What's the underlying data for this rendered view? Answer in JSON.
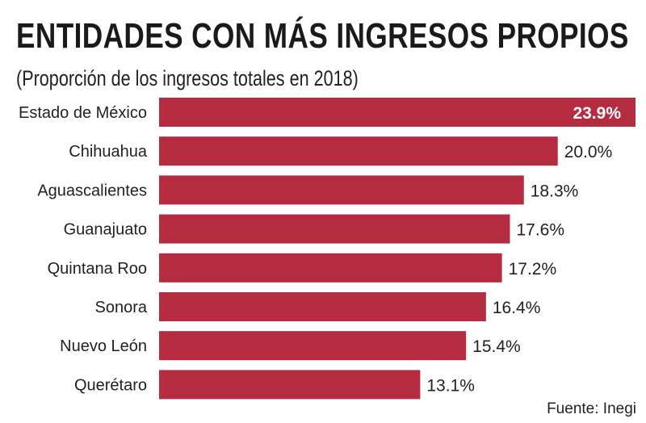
{
  "chart_data": {
    "type": "bar",
    "orientation": "horizontal",
    "title": "ENTIDADES CON MÁS INGRESOS PROPIOS",
    "subtitle": "(Proporción de los ingresos totales en 2018)",
    "categories": [
      "Estado de México",
      "Chihuahua",
      "Aguascalientes",
      "Guanajuato",
      "Quintana Roo",
      "Sonora",
      "Nuevo León",
      "Querétaro"
    ],
    "values": [
      23.9,
      20.0,
      18.3,
      17.6,
      17.2,
      16.4,
      15.4,
      13.1
    ],
    "data_labels": [
      "23.9%",
      "20.0%",
      "18.3%",
      "17.6%",
      "17.2%",
      "16.4%",
      "15.4%",
      "13.1%"
    ],
    "unit": "%",
    "xlim": [
      0,
      23.9
    ],
    "grid": false,
    "bar_color": "#b52b3f",
    "highlight_label_color": "#ffffff"
  },
  "source": "Fuente: Inegi"
}
